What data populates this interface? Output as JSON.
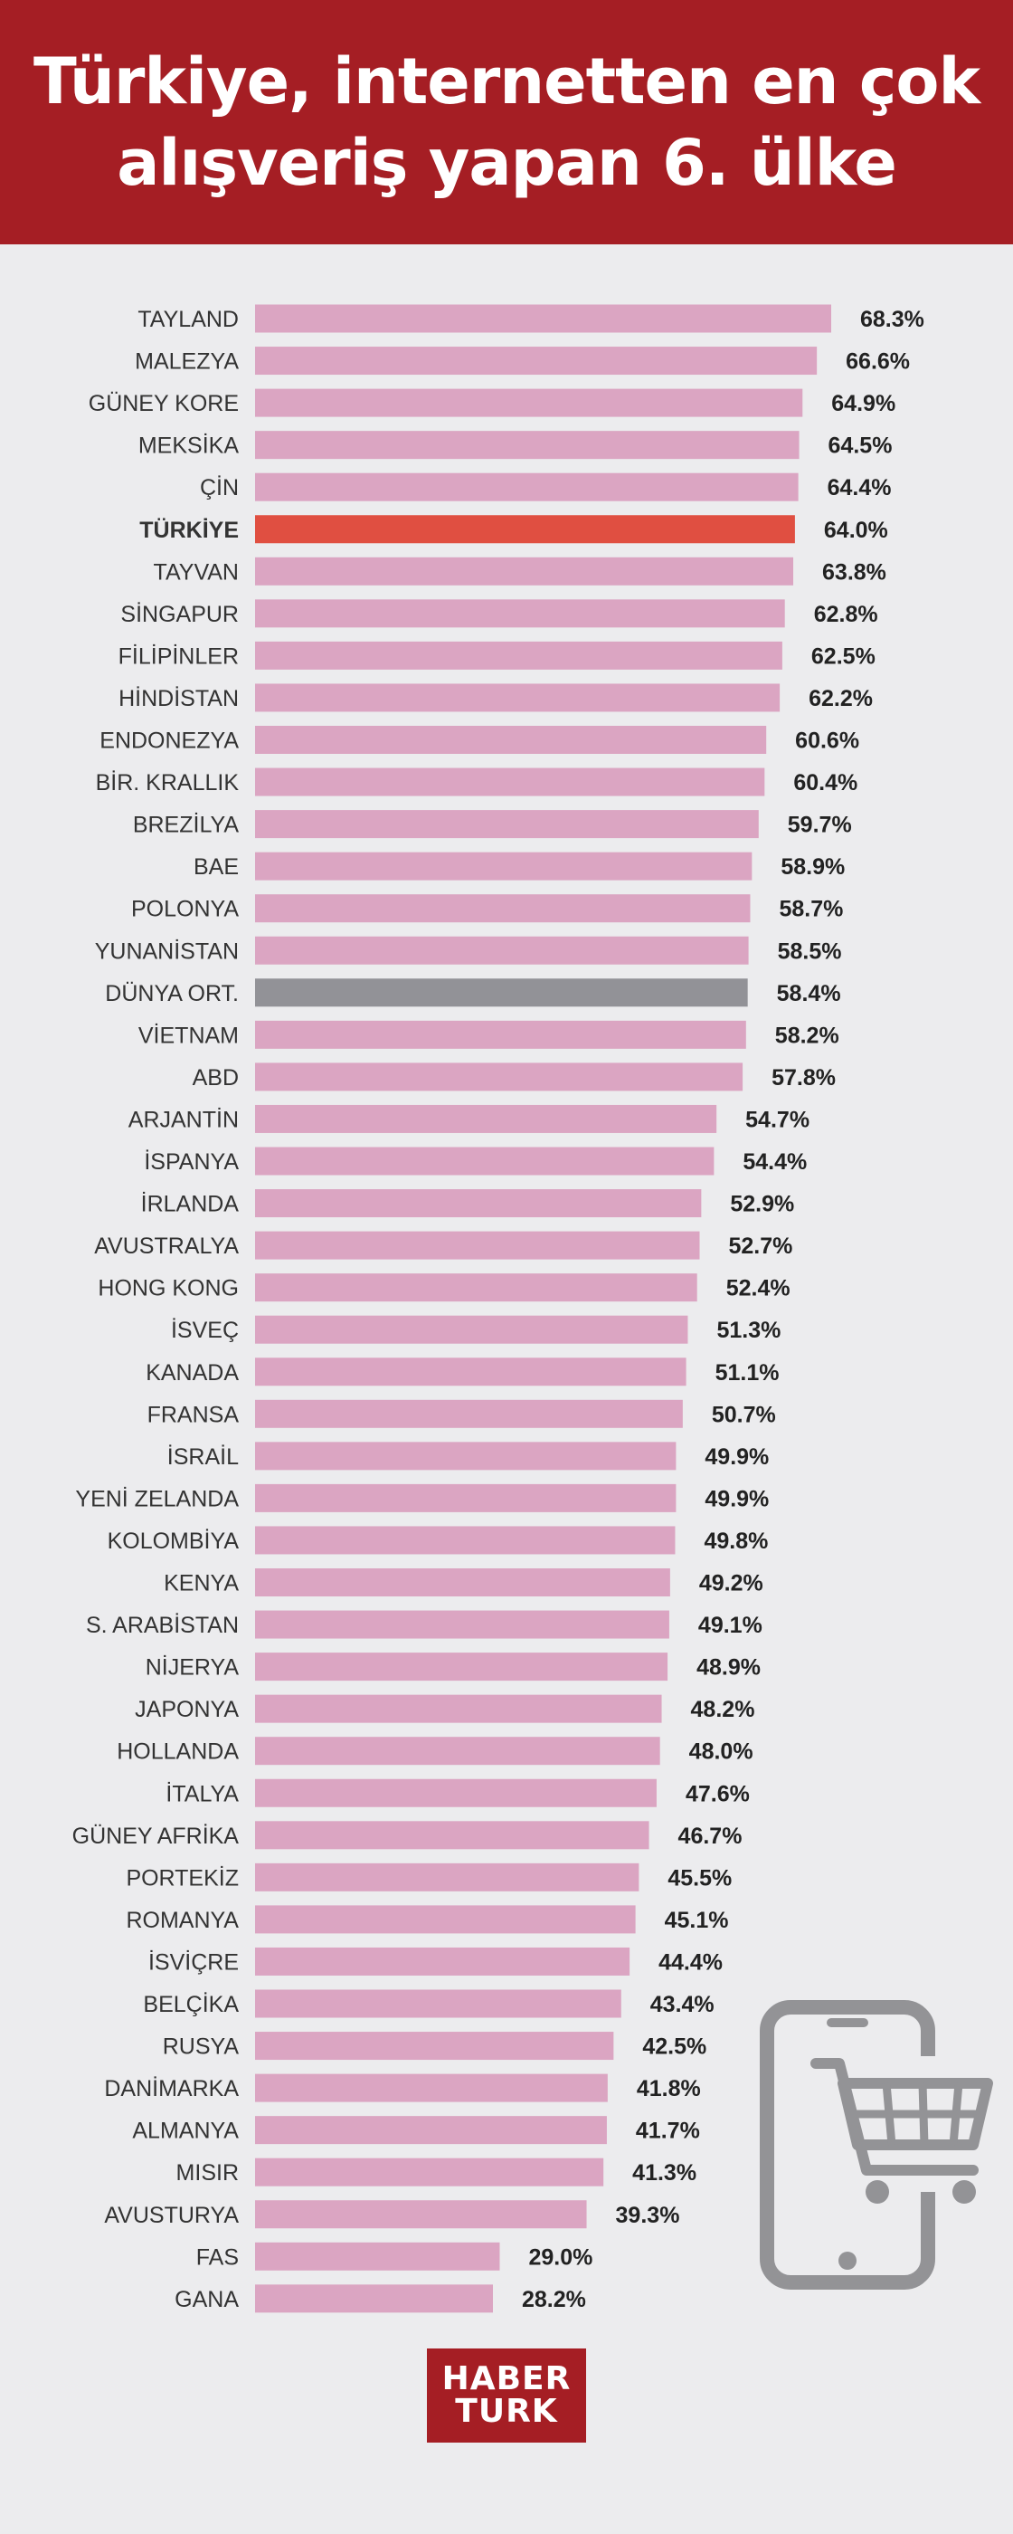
{
  "header": {
    "line1": "Türkiye, internetten en çok",
    "line2": "alışveriş yapan 6. ülke"
  },
  "logo": {
    "line1": "HABER",
    "line2": "TURK"
  },
  "colors": {
    "bar": "#dba5c2",
    "highlight": "#e04f41",
    "average": "#929297",
    "header": "#a51e24",
    "icon": "#939396"
  },
  "icon": "smartphone-shopping-cart-icon",
  "chart_data": {
    "type": "bar",
    "orientation": "horizontal",
    "title": "",
    "xlabel": "",
    "ylabel": "",
    "xlim": [
      0,
      68.3
    ],
    "grid": false,
    "highlighted_category": "TÜRKİYE",
    "average_category": "DÜNYA ORT.",
    "categories": [
      "TAYLAND",
      "MALEZYA",
      "GÜNEY KORE",
      "MEKSİKA",
      "ÇİN",
      "TÜRKİYE",
      "TAYVAN",
      "SİNGAPUR",
      "FİLİPİNLER",
      "HİNDİSTAN",
      "ENDONEZYA",
      "BİR. KRALLIK",
      "BREZİLYA",
      "BAE",
      "POLONYA",
      "YUNANİSTAN",
      "DÜNYA ORT.",
      "VİETNAM",
      "ABD",
      "ARJANTİN",
      "İSPANYA",
      "İRLANDA",
      "AVUSTRALYA",
      "HONG KONG",
      "İSVEÇ",
      "KANADA",
      "FRANSA",
      "İSRAİL",
      "YENİ ZELANDA",
      "KOLOMBİYA",
      "KENYA",
      "S. ARABİSTAN",
      "NİJERYA",
      "JAPONYA",
      "HOLLANDA",
      "İTALYA",
      "GÜNEY AFRİKA",
      "PORTEKİZ",
      "ROMANYA",
      "İSVİÇRE",
      "BELÇİKA",
      "RUSYA",
      "DANİMARKA",
      "ALMANYA",
      "MISIR",
      "AVUSTURYA",
      "FAS",
      "GANA"
    ],
    "values": [
      68.3,
      66.6,
      64.9,
      64.5,
      64.4,
      64.0,
      63.8,
      62.8,
      62.5,
      62.2,
      60.6,
      60.4,
      59.7,
      58.9,
      58.7,
      58.5,
      58.4,
      58.2,
      57.8,
      54.7,
      54.4,
      52.9,
      52.7,
      52.4,
      51.3,
      51.1,
      50.7,
      49.9,
      49.9,
      49.8,
      49.2,
      49.1,
      48.9,
      48.2,
      48.0,
      47.6,
      46.7,
      45.5,
      45.1,
      44.4,
      43.4,
      42.5,
      41.8,
      41.7,
      41.3,
      39.3,
      29.0,
      28.2
    ],
    "value_labels": [
      "68.3%",
      "66.6%",
      "64.9%",
      "64.5%",
      "64.4%",
      "64.0%",
      "63.8%",
      "62.8%",
      "62.5%",
      "62.2%",
      "60.6%",
      "60.4%",
      "59.7%",
      "58.9%",
      "58.7%",
      "58.5%",
      "58.4%",
      "58.2%",
      "57.8%",
      "54.7%",
      "54.4%",
      "52.9%",
      "52.7%",
      "52.4%",
      "51.3%",
      "51.1%",
      "50.7%",
      "49.9%",
      "49.9%",
      "49.8%",
      "49.2%",
      "49.1%",
      "48.9%",
      "48.2%",
      "48.0%",
      "47.6%",
      "46.7%",
      "45.5%",
      "45.1%",
      "44.4%",
      "43.4%",
      "42.5%",
      "41.8%",
      "41.7%",
      "41.3%",
      "39.3%",
      "29.0%",
      "28.2%"
    ]
  }
}
